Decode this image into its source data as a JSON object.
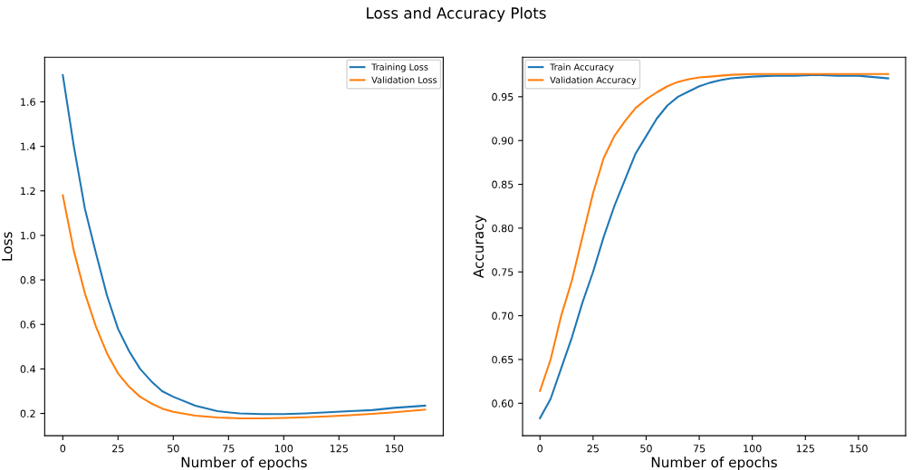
{
  "chart_data": [
    {
      "type": "line",
      "title": "Loss and Accuracy Plots",
      "xlabel": "Number of epochs",
      "ylabel": "Loss",
      "x": [
        0,
        5,
        10,
        15,
        20,
        25,
        30,
        35,
        40,
        45,
        50,
        60,
        70,
        80,
        90,
        100,
        110,
        120,
        130,
        140,
        150,
        164
      ],
      "series": [
        {
          "name": "Training Loss",
          "color": "#1f77b4",
          "values": [
            1.72,
            1.4,
            1.12,
            0.92,
            0.73,
            0.58,
            0.48,
            0.4,
            0.345,
            0.3,
            0.275,
            0.235,
            0.21,
            0.2,
            0.197,
            0.197,
            0.2,
            0.205,
            0.21,
            0.215,
            0.225,
            0.235
          ]
        },
        {
          "name": "Validation Loss",
          "color": "#ff7f0e",
          "values": [
            1.18,
            0.93,
            0.74,
            0.59,
            0.47,
            0.38,
            0.32,
            0.275,
            0.245,
            0.222,
            0.207,
            0.19,
            0.182,
            0.178,
            0.178,
            0.18,
            0.183,
            0.187,
            0.192,
            0.198,
            0.205,
            0.217
          ]
        }
      ],
      "xlim": [
        -8.2,
        172.2
      ],
      "xticks": [
        0,
        25,
        50,
        75,
        100,
        125,
        150
      ],
      "ylim": [
        0.1,
        1.8
      ],
      "yticks": [
        0.2,
        0.4,
        0.6,
        0.8,
        {
          "value": 1.0,
          "label": "1.0"
        },
        1.2,
        1.4,
        1.6
      ],
      "legend": "top right",
      "grid": false
    },
    {
      "type": "line",
      "xlabel": "Number of epochs",
      "ylabel": "Accuracy",
      "x": [
        0,
        5,
        10,
        15,
        20,
        25,
        30,
        35,
        40,
        45,
        50,
        55,
        60,
        65,
        70,
        75,
        80,
        85,
        90,
        100,
        110,
        120,
        130,
        140,
        150,
        164
      ],
      "series": [
        {
          "name": "Train Accuracy",
          "color": "#1f77b4",
          "values": [
            0.583,
            0.605,
            0.64,
            0.675,
            0.715,
            0.75,
            0.79,
            0.825,
            0.855,
            0.885,
            0.905,
            0.925,
            0.94,
            0.95,
            0.956,
            0.962,
            0.966,
            0.969,
            0.971,
            0.973,
            0.974,
            0.974,
            0.975,
            0.974,
            0.974,
            0.971
          ]
        },
        {
          "name": "Validation Accuracy",
          "color": "#ff7f0e",
          "values": [
            0.614,
            0.65,
            0.7,
            0.74,
            0.79,
            0.84,
            0.88,
            0.905,
            0.922,
            0.937,
            0.947,
            0.955,
            0.962,
            0.967,
            0.97,
            0.972,
            0.973,
            0.974,
            0.975,
            0.976,
            0.976,
            0.976,
            0.976,
            0.976,
            0.976,
            0.976
          ]
        }
      ],
      "xlim": [
        -8.2,
        172.2
      ],
      "xticks": [
        0,
        25,
        50,
        75,
        100,
        125,
        150
      ],
      "ylim": [
        0.563,
        0.995
      ],
      "yticks": [
        {
          "value": 0.6,
          "label": "0.60"
        },
        {
          "value": 0.65,
          "label": "0.65"
        },
        {
          "value": 0.7,
          "label": "0.70"
        },
        {
          "value": 0.75,
          "label": "0.75"
        },
        {
          "value": 0.8,
          "label": "0.80"
        },
        {
          "value": 0.85,
          "label": "0.85"
        },
        {
          "value": 0.9,
          "label": "0.90"
        },
        {
          "value": 0.95,
          "label": "0.95"
        }
      ],
      "legend": "top left",
      "grid": false
    }
  ]
}
